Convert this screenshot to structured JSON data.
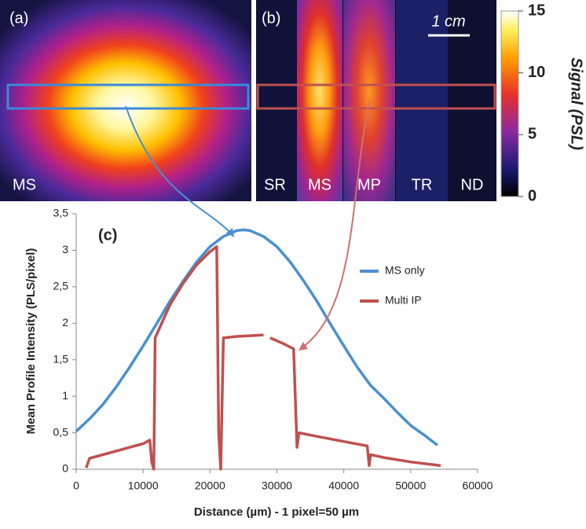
{
  "panels": {
    "a": {
      "label": "(a)",
      "strip": "MS"
    },
    "b": {
      "label": "(b)",
      "scale": "1 cm",
      "strips": [
        "SR",
        "MS",
        "MP",
        "TR",
        "ND"
      ]
    }
  },
  "colorbar": {
    "title": "Signal (PSL)",
    "lim": [
      0,
      15
    ],
    "ticks": [
      0,
      5,
      10,
      15
    ]
  },
  "chart_data": {
    "type": "line",
    "label": "(c)",
    "x_label": "Distance (µm) - 1 pixel=50 µm",
    "y_label": "Mean Profile Intensity (PLS/pixel)",
    "xlim": [
      0,
      60000
    ],
    "xticks": [
      0,
      10000,
      20000,
      30000,
      40000,
      50000,
      60000
    ],
    "ylim": [
      0,
      3.5
    ],
    "yticks": [
      0,
      {
        "value": 0.5,
        "label": "0,5"
      },
      1,
      {
        "value": 1.5,
        "label": "1,5"
      },
      2,
      {
        "value": 2.5,
        "label": "2,5"
      },
      3,
      {
        "value": 3.5,
        "label": "3,5"
      }
    ],
    "grid": false,
    "series": [
      {
        "name": "MS only",
        "color": "#4a90d0",
        "x": [
          0,
          2000,
          4000,
          6000,
          8000,
          10000,
          12000,
          14000,
          16000,
          18000,
          20000,
          22000,
          24000,
          25000,
          26000,
          28000,
          30000,
          32000,
          34000,
          36000,
          38000,
          40000,
          42000,
          44000,
          46000,
          48000,
          50000,
          52000,
          54000
        ],
        "values": [
          0.52,
          0.69,
          0.89,
          1.13,
          1.4,
          1.69,
          1.99,
          2.3,
          2.58,
          2.84,
          3.05,
          3.19,
          3.27,
          3.28,
          3.27,
          3.19,
          3.05,
          2.84,
          2.58,
          2.3,
          1.99,
          1.69,
          1.4,
          1.15,
          0.97,
          0.78,
          0.6,
          0.47,
          0.33
        ]
      },
      {
        "name": "Multi IP",
        "color": "#c0504d",
        "x": [
          1500,
          2000,
          4000,
          6000,
          8000,
          10000,
          11000,
          11300,
          11600,
          11800,
          14000,
          16000,
          18000,
          20000,
          21000,
          21300,
          21600,
          22000,
          24000,
          26000,
          28000,
          28500,
          29000,
          31000,
          32500,
          33000,
          33300,
          36000,
          40000,
          43500,
          43800,
          44000,
          46000,
          50000,
          54500
        ],
        "values": [
          0.02,
          0.15,
          0.2,
          0.25,
          0.3,
          0.35,
          0.4,
          0.1,
          0,
          1.8,
          2.25,
          2.55,
          2.8,
          2.98,
          3.05,
          0.5,
          0,
          1.8,
          1.82,
          1.83,
          1.84,
          null,
          1.8,
          1.72,
          1.65,
          0.3,
          0.5,
          0.45,
          0.38,
          0.32,
          0.05,
          0.2,
          0.16,
          0.1,
          0.05
        ]
      }
    ]
  }
}
